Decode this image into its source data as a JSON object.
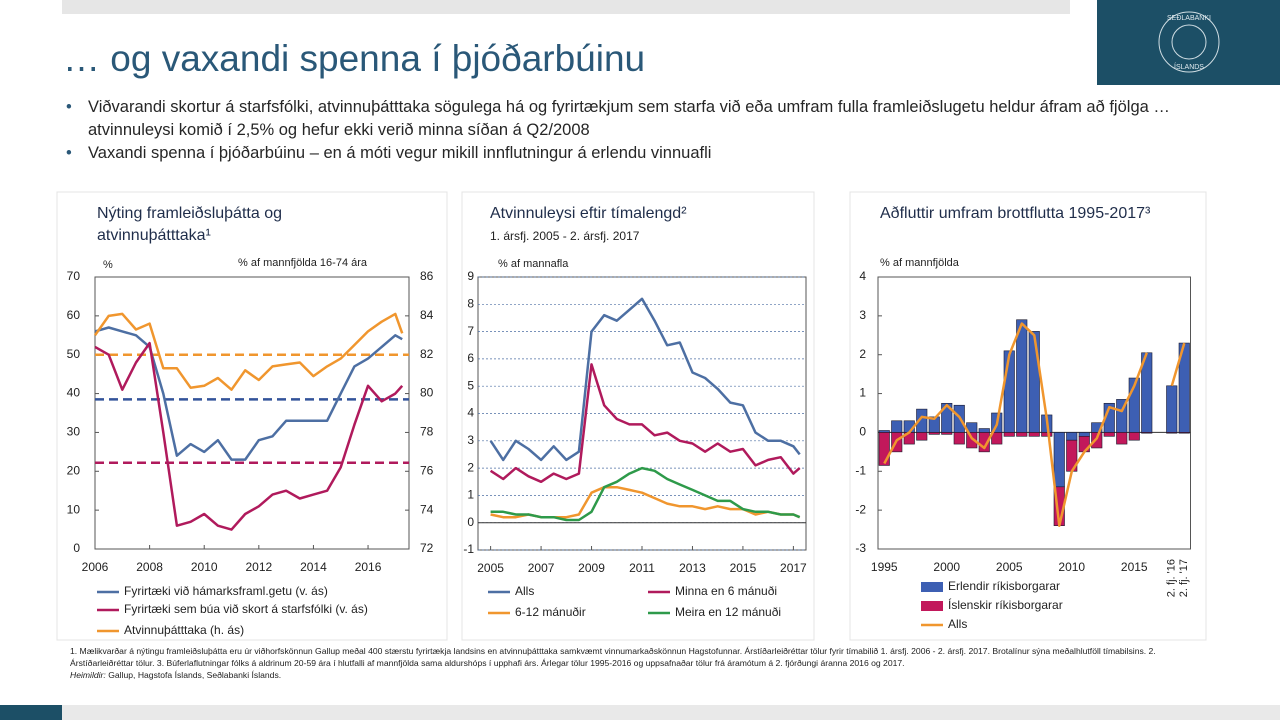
{
  "header": {
    "title": "… og vaxandi spenna í þjóðarbúinu",
    "logo": {
      "top": "SEÐLABANKI",
      "bottom": "ÍSLANDS"
    }
  },
  "bullets": [
    "Viðvarandi skortur á starfsfólki, atvinnuþátttaka sögulega há og fyrirtækjum sem starfa við eða umfram fulla framleiðslugetu heldur áfram að fjölga … atvinnuleysi komið í 2,5% og hefur ekki verið minna síðan á Q2/2008",
    "Vaxandi spenna í þjóðarbúinu – en á móti vegur mikill innflutningur á erlendu vinnuafli"
  ],
  "footnote": {
    "text": "1. Mælikvarðar á nýtingu framleiðsluþátta eru úr viðhorfskönnun Gallup meðal 400 stærstu fyrirtækja landsins en atvinnuþátttaka samkvæmt vinnumarkaðskönnun Hagstofunnar. Árstíðarleiðréttar tölur fyrir tímabilið 1. ársfj. 2006 - 2. ársfj. 2017. Brotalínur sýna meðalhlutföll tímabilsins. 2. Árstíðarleiðréttar tölur. 3. Búferlaflutningar fólks á aldrinum 20-59 ára í hlutfalli af mannfjölda sama aldurshóps í upphafi árs. Árlegar tölur 1995-2016 og uppsafnaðar tölur frá áramótum á 2. fjórðungi áranna 2016 og 2017.",
    "sources_label": "Heimildir:",
    "sources": "Gallup, Hagstofa Íslands, Seðlabanki Íslands."
  },
  "chart_data": [
    {
      "type": "line",
      "title": "Nýting framleiðsluþátta og atvinnuþátttaka¹",
      "ylabel": "%",
      "y2label": "% af mannfjölda 16-74 ára",
      "x": [
        2006,
        2006.5,
        2007,
        2007.5,
        2008,
        2008.5,
        2009,
        2009.5,
        2010,
        2010.5,
        2011,
        2011.5,
        2012,
        2012.5,
        2013,
        2013.5,
        2014,
        2014.5,
        2015,
        2015.5,
        2016,
        2016.5,
        2017,
        2017.25
      ],
      "xlim": [
        2006,
        2017.5
      ],
      "xticks": [
        2006,
        2008,
        2010,
        2012,
        2014,
        2016
      ],
      "ylim": [
        0,
        70
      ],
      "yticks": [
        0,
        10,
        20,
        30,
        40,
        50,
        60,
        70
      ],
      "y2lim": [
        72,
        86
      ],
      "y2ticks": [
        72,
        74,
        76,
        78,
        80,
        82,
        84,
        86
      ],
      "series": [
        {
          "name": "Fyrirtæki við hámarksframl.getu (v. ás)",
          "color": "#4d6fa3",
          "values": [
            56,
            57,
            56,
            55,
            52,
            40,
            24,
            27,
            25,
            28,
            23,
            23,
            28,
            29,
            33,
            33,
            33,
            33,
            40,
            47,
            49,
            52,
            55,
            54
          ]
        },
        {
          "name": "Fyrirtæki sem búa við skort á starfsfólki (v. ás)",
          "color": "#b01a5c",
          "values": [
            52,
            50,
            41,
            48,
            53,
            30,
            6,
            7,
            9,
            6,
            5,
            9,
            11,
            14,
            15,
            13,
            14,
            15,
            21,
            32,
            42,
            38,
            40,
            42
          ]
        },
        {
          "name": "Atvinnuþátttaka (h. ás)",
          "color": "#f0962e",
          "axis": "y2",
          "values": [
            83,
            84,
            84.1,
            83.3,
            83.6,
            81.3,
            81.3,
            80.3,
            80.4,
            80.8,
            80.2,
            81.2,
            80.7,
            81.4,
            81.5,
            81.6,
            80.9,
            81.4,
            81.8,
            82.5,
            83.2,
            83.7,
            84.1,
            83.1
          ]
        }
      ],
      "reference_lines": [
        {
          "value": 38.5,
          "color": "#33539a",
          "axis": "y"
        },
        {
          "value": 22.2,
          "color": "#b01a5c",
          "axis": "y"
        },
        {
          "value": 82,
          "color": "#f0962e",
          "axis": "y2"
        }
      ]
    },
    {
      "type": "line",
      "title": "Atvinnuleysi eftir tímalengd²",
      "subtitle": "1. ársfj. 2005 - 2. ársfj. 2017",
      "ylabel": "% af mannafla",
      "x": [
        2005,
        2005.5,
        2006,
        2006.5,
        2007,
        2007.5,
        2008,
        2008.5,
        2009,
        2009.5,
        2010,
        2010.5,
        2011,
        2011.5,
        2012,
        2012.5,
        2013,
        2013.5,
        2014,
        2014.5,
        2015,
        2015.5,
        2016,
        2016.5,
        2017,
        2017.25
      ],
      "xlim": [
        2004.5,
        2017.5
      ],
      "xticks": [
        2005,
        2007,
        2009,
        2011,
        2013,
        2015,
        2017
      ],
      "ylim": [
        -1,
        9
      ],
      "yticks": [
        -1,
        0,
        1,
        2,
        3,
        4,
        5,
        6,
        7,
        8,
        9
      ],
      "grid": true,
      "series": [
        {
          "name": "Alls",
          "color": "#4d6fa3",
          "values": [
            3,
            2.3,
            3,
            2.7,
            2.3,
            2.8,
            2.3,
            2.6,
            7,
            7.6,
            7.4,
            7.8,
            8.2,
            7.4,
            6.5,
            6.6,
            5.5,
            5.3,
            4.9,
            4.4,
            4.3,
            3.3,
            3.0,
            3.0,
            2.8,
            2.5
          ]
        },
        {
          "name": "Minna en 6 mánuði",
          "color": "#b01a5c",
          "values": [
            1.9,
            1.6,
            2.0,
            1.7,
            1.5,
            1.8,
            1.6,
            1.8,
            5.8,
            4.3,
            3.8,
            3.6,
            3.6,
            3.2,
            3.3,
            3.0,
            2.9,
            2.6,
            2.9,
            2.6,
            2.7,
            2.1,
            2.3,
            2.4,
            1.8,
            2.0
          ]
        },
        {
          "name": "6-12 mánuðir",
          "color": "#f0962e",
          "values": [
            0.3,
            0.2,
            0.2,
            0.3,
            0.2,
            0.2,
            0.2,
            0.3,
            1.1,
            1.3,
            1.3,
            1.2,
            1.1,
            0.9,
            0.7,
            0.6,
            0.6,
            0.5,
            0.6,
            0.5,
            0.5,
            0.3,
            0.4,
            0.3,
            0.3,
            0.2
          ]
        },
        {
          "name": "Meira en 12 mánuði",
          "color": "#2e9a4a",
          "values": [
            0.4,
            0.4,
            0.3,
            0.3,
            0.2,
            0.2,
            0.1,
            0.1,
            0.4,
            1.3,
            1.5,
            1.8,
            2.0,
            1.9,
            1.6,
            1.4,
            1.2,
            1.0,
            0.8,
            0.8,
            0.5,
            0.4,
            0.4,
            0.3,
            0.3,
            0.2
          ]
        }
      ]
    },
    {
      "type": "bar",
      "stacked": true,
      "title": "Aðfluttir umfram brottflutta 1995-2017³",
      "ylabel": "% af mannfjölda",
      "categories": [
        "1995",
        null,
        null,
        null,
        null,
        "2000",
        null,
        null,
        null,
        null,
        "2005",
        null,
        null,
        null,
        null,
        "2010",
        null,
        null,
        null,
        null,
        "2015",
        null,
        null,
        "2. fj. '16",
        "2. fj. '17"
      ],
      "ylim": [
        -3,
        4
      ],
      "yticks": [
        -3,
        -2,
        -1,
        0,
        1,
        2,
        3,
        4
      ],
      "series": [
        {
          "name": "Erlendir ríkisborgarar",
          "type": "bar",
          "color": "#3d5fb3",
          "values": [
            0.05,
            0.3,
            0.3,
            0.6,
            0.4,
            0.75,
            0.7,
            0.25,
            0.1,
            0.5,
            2.1,
            2.9,
            2.6,
            0.45,
            -1.4,
            -0.2,
            -0.1,
            0.25,
            0.75,
            0.85,
            1.4,
            2.05,
            null,
            1.2,
            2.3
          ]
        },
        {
          "name": "Íslenskir ríkisborgarar",
          "type": "bar",
          "color": "#c2185b",
          "values": [
            -0.85,
            -0.5,
            -0.3,
            -0.2,
            -0.05,
            -0.05,
            -0.3,
            -0.4,
            -0.5,
            -0.3,
            -0.1,
            -0.1,
            -0.1,
            -0.1,
            -1.0,
            -0.8,
            -0.4,
            -0.4,
            -0.1,
            -0.3,
            -0.2,
            -0.02,
            null,
            -0.02,
            -0.02
          ]
        },
        {
          "name": "Alls",
          "type": "line",
          "color": "#f0962e",
          "values": [
            -0.8,
            -0.2,
            0.0,
            0.4,
            0.35,
            0.7,
            0.4,
            -0.15,
            -0.4,
            0.2,
            2.0,
            2.8,
            2.5,
            0.35,
            -2.4,
            -1.0,
            -0.5,
            -0.15,
            0.65,
            0.55,
            1.2,
            2.05,
            null,
            1.2,
            2.3
          ]
        }
      ]
    }
  ]
}
